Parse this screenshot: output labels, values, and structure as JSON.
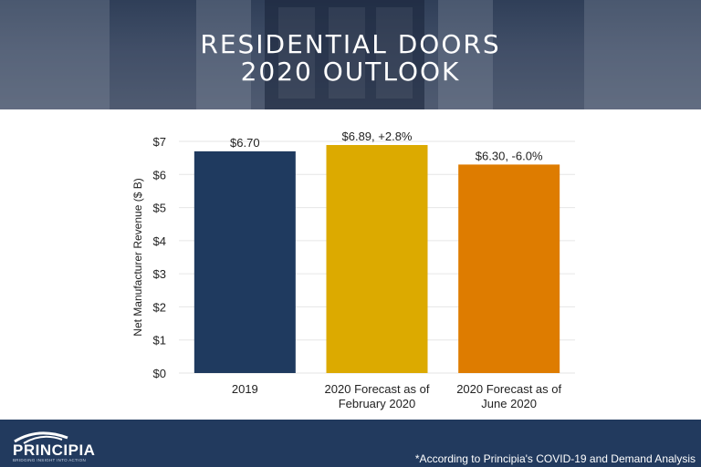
{
  "header": {
    "title_line1": "RESIDENTIAL DOORS",
    "title_line2": "2020 OUTLOOK"
  },
  "chart_data": {
    "type": "bar",
    "title": "",
    "ylabel": "Net Manufacturer Revenue ($ B)",
    "xlabel": "",
    "ylim": [
      0,
      7
    ],
    "y_ticks": [
      "$0",
      "$1",
      "$2",
      "$3",
      "$4",
      "$5",
      "$6",
      "$7"
    ],
    "grid": true,
    "categories": [
      [
        "2019"
      ],
      [
        "2020 Forecast as of",
        "February 2020"
      ],
      [
        "2020 Forecast as of",
        "June 2020"
      ]
    ],
    "values": [
      6.7,
      6.89,
      6.3
    ],
    "data_labels": [
      "$6.70",
      "$6.89, +2.8%",
      "$6.30, -6.0%"
    ],
    "colors": [
      "#1f3a5f",
      "#dcaa00",
      "#de7c00"
    ]
  },
  "footer": {
    "logo_text": "PRINCIPIA",
    "logo_tagline": "BRIDGING INSIGHT INTO ACTION",
    "note": "*According to Principia's COVID-19 and Demand Analysis"
  },
  "colors": {
    "footer_bg": "#223a5e",
    "header_overlay": "#3a4a63"
  }
}
